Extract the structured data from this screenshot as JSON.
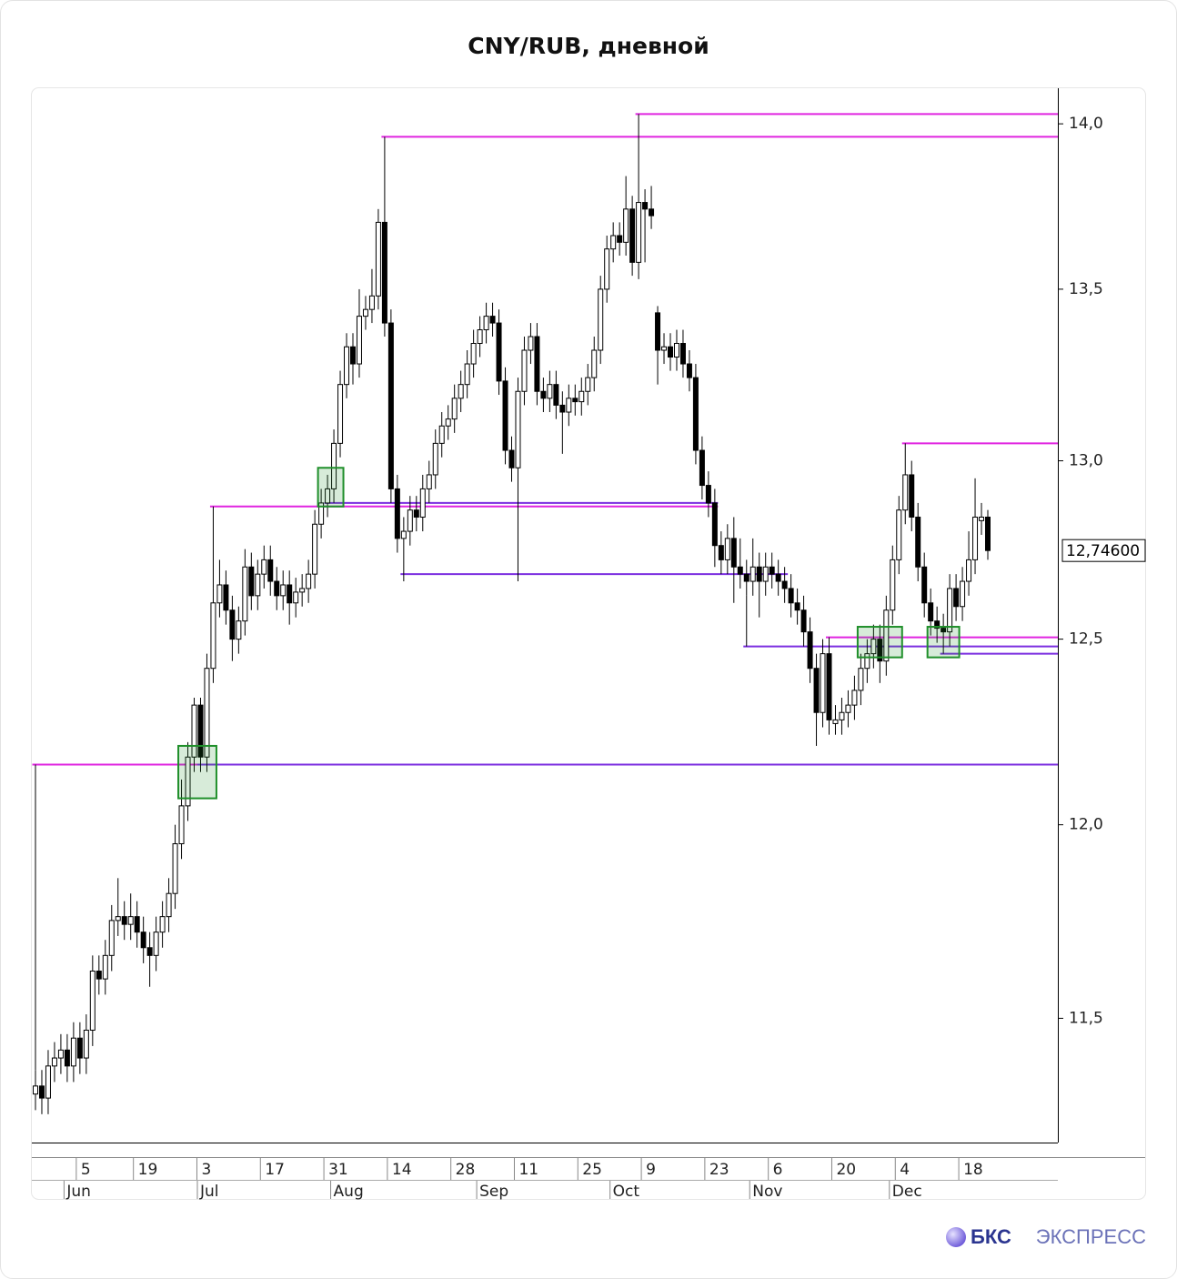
{
  "chart_data": {
    "type": "candlestick",
    "title": "CNY/RUB, дневной",
    "log_y": true,
    "ylim": [
      11.19,
      14.11
    ],
    "yticks": [
      {
        "value": 11.5,
        "label": "11,5"
      },
      {
        "value": 12,
        "label": "12,0"
      },
      {
        "value": 12.5,
        "label": "12,5"
      },
      {
        "value": 13,
        "label": "13,0"
      },
      {
        "value": 13.5,
        "label": "13,5"
      },
      {
        "value": 14,
        "label": "14,0"
      }
    ],
    "up_color": "#ffffff",
    "down_color": "#000000",
    "wick_color": "#000000",
    "last_value": {
      "value": 12.746,
      "label": "12,74600"
    },
    "categories": [
      null,
      null,
      null,
      null,
      null,
      null,
      null,
      "5",
      null,
      null,
      null,
      null,
      null,
      null,
      null,
      null,
      "19",
      null,
      null,
      null,
      null,
      null,
      null,
      null,
      null,
      null,
      "3",
      null,
      null,
      null,
      null,
      null,
      null,
      null,
      null,
      null,
      "17",
      null,
      null,
      null,
      null,
      null,
      null,
      null,
      null,
      null,
      "31",
      null,
      null,
      null,
      null,
      null,
      null,
      null,
      null,
      null,
      "14",
      null,
      null,
      null,
      null,
      null,
      null,
      null,
      null,
      null,
      "28",
      null,
      null,
      null,
      null,
      null,
      null,
      null,
      null,
      null,
      "11",
      null,
      null,
      null,
      null,
      null,
      null,
      null,
      null,
      null,
      "25",
      null,
      null,
      null,
      null,
      null,
      null,
      null,
      null,
      null,
      "9",
      null,
      null,
      null,
      null,
      null,
      null,
      null,
      null,
      null,
      "23",
      null,
      null,
      null,
      null,
      null,
      null,
      null,
      null,
      null,
      "6",
      null,
      null,
      null,
      null,
      null,
      null,
      null,
      null,
      null,
      "20",
      null,
      null,
      null,
      null,
      null,
      null,
      null,
      null,
      null,
      "4",
      null,
      null,
      null,
      null,
      null,
      null,
      null,
      null,
      null,
      "18",
      null,
      null,
      null,
      null
    ],
    "month_categories": [
      null,
      null,
      null,
      null,
      null,
      "Jun",
      null,
      null,
      null,
      null,
      null,
      null,
      null,
      null,
      null,
      null,
      null,
      null,
      null,
      null,
      null,
      null,
      null,
      null,
      null,
      null,
      "Jul",
      null,
      null,
      null,
      null,
      null,
      null,
      null,
      null,
      null,
      null,
      null,
      null,
      null,
      null,
      null,
      null,
      null,
      null,
      null,
      null,
      "Aug",
      null,
      null,
      null,
      null,
      null,
      null,
      null,
      null,
      null,
      null,
      null,
      null,
      null,
      null,
      null,
      null,
      null,
      null,
      null,
      null,
      null,
      null,
      "Sep",
      null,
      null,
      null,
      null,
      null,
      null,
      null,
      null,
      null,
      null,
      null,
      null,
      null,
      null,
      null,
      null,
      null,
      null,
      null,
      null,
      "Oct",
      null,
      null,
      null,
      null,
      null,
      null,
      null,
      null,
      null,
      null,
      null,
      null,
      null,
      null,
      null,
      null,
      null,
      null,
      null,
      null,
      null,
      "Nov",
      null,
      null,
      null,
      null,
      null,
      null,
      null,
      null,
      null,
      null,
      null,
      null,
      null,
      null,
      null,
      null,
      null,
      null,
      null,
      null,
      null,
      "Dec",
      null,
      null,
      null,
      null,
      null,
      null,
      null,
      null,
      null,
      null,
      null,
      null,
      null,
      null,
      null
    ],
    "open": [
      11.31,
      11.33,
      11.3,
      11.38,
      11.4,
      11.42,
      11.38,
      11.45,
      11.4,
      11.47,
      11.62,
      11.6,
      11.66,
      11.75,
      11.76,
      11.74,
      11.76,
      11.72,
      11.68,
      11.66,
      11.72,
      11.76,
      11.82,
      11.95,
      12.05,
      12.18,
      12.32,
      12.18,
      12.42,
      12.6,
      12.65,
      12.58,
      12.5,
      12.55,
      12.7,
      12.62,
      12.68,
      12.72,
      12.66,
      12.62,
      12.65,
      12.6,
      12.63,
      12.64,
      12.68,
      12.82,
      12.88,
      12.92,
      13.05,
      13.22,
      13.33,
      13.28,
      13.42,
      13.44,
      13.48,
      13.7,
      13.4,
      12.92,
      12.78,
      12.8,
      12.86,
      12.84,
      12.92,
      12.96,
      13.05,
      13.1,
      13.12,
      13.18,
      13.22,
      13.28,
      13.34,
      13.38,
      13.42,
      13.4,
      13.23,
      13.03,
      12.98,
      13.2,
      13.32,
      13.36,
      13.2,
      13.18,
      13.22,
      13.16,
      13.14,
      13.18,
      13.17,
      13.2,
      13.24,
      13.32,
      13.5,
      13.62,
      13.66,
      13.64,
      13.74,
      13.58,
      13.76,
      13.74,
      13.43,
      13.32,
      13.33,
      13.3,
      13.34,
      13.28,
      13.24,
      13.03,
      12.93,
      12.88,
      12.76,
      12.72,
      12.78,
      12.7,
      12.68,
      12.66,
      12.7,
      12.66,
      12.7,
      12.68,
      12.66,
      12.64,
      12.6,
      12.58,
      12.52,
      12.42,
      12.3,
      12.46,
      12.27,
      12.28,
      12.3,
      12.32,
      12.36,
      12.42,
      12.46,
      12.5,
      12.44,
      12.58,
      12.72,
      12.86,
      12.96,
      12.84,
      12.7,
      12.6,
      12.55,
      12.53,
      12.52,
      12.64,
      12.59,
      12.66,
      12.72,
      12.83,
      12.84
    ],
    "high": [
      11.37,
      11.37,
      11.42,
      11.44,
      11.46,
      11.46,
      11.49,
      11.49,
      11.51,
      11.66,
      11.66,
      11.7,
      11.79,
      11.86,
      11.8,
      11.82,
      11.8,
      11.76,
      11.72,
      11.76,
      11.8,
      11.86,
      12.0,
      12.12,
      12.22,
      12.34,
      12.34,
      12.46,
      12.64,
      12.72,
      12.69,
      12.62,
      12.59,
      12.75,
      12.74,
      12.72,
      12.76,
      12.76,
      12.7,
      12.69,
      12.69,
      12.67,
      12.68,
      12.72,
      12.86,
      12.92,
      12.96,
      13.09,
      13.26,
      13.37,
      13.37,
      13.5,
      13.48,
      13.56,
      13.74,
      13.96,
      13.44,
      12.96,
      12.84,
      12.9,
      12.9,
      12.96,
      13.0,
      13.09,
      13.14,
      13.16,
      13.22,
      13.26,
      13.32,
      13.38,
      13.42,
      13.46,
      13.46,
      13.44,
      13.27,
      13.07,
      13.24,
      13.36,
      13.4,
      13.4,
      13.24,
      13.26,
      13.26,
      13.2,
      13.22,
      13.22,
      13.24,
      13.28,
      13.36,
      13.54,
      13.66,
      13.7,
      13.7,
      13.84,
      13.78,
      14.03,
      13.8,
      13.81,
      13.45,
      13.37,
      13.37,
      13.38,
      13.38,
      13.32,
      13.28,
      13.07,
      12.97,
      12.92,
      12.8,
      12.82,
      12.84,
      12.78,
      12.72,
      12.78,
      12.74,
      12.74,
      12.74,
      12.72,
      12.7,
      12.68,
      12.64,
      12.62,
      12.56,
      12.46,
      12.5,
      12.5,
      12.32,
      12.34,
      12.36,
      12.4,
      12.46,
      12.5,
      12.54,
      12.54,
      12.62,
      12.76,
      12.9,
      13.05,
      13.0,
      12.88,
      12.74,
      12.64,
      12.59,
      12.57,
      12.68,
      12.68,
      12.7,
      12.8,
      12.95,
      12.88,
      12.86
    ],
    "low": [
      11.27,
      11.26,
      11.26,
      11.34,
      11.36,
      11.34,
      11.34,
      11.36,
      11.36,
      11.43,
      11.56,
      11.56,
      11.62,
      11.71,
      11.7,
      11.7,
      11.68,
      11.64,
      11.58,
      11.62,
      11.68,
      11.72,
      11.78,
      11.91,
      12.01,
      12.14,
      12.14,
      12.14,
      12.38,
      12.56,
      12.54,
      12.44,
      12.46,
      12.51,
      12.58,
      12.58,
      12.64,
      12.62,
      12.58,
      12.58,
      12.54,
      12.56,
      12.59,
      12.6,
      12.64,
      12.78,
      12.84,
      12.88,
      13.01,
      13.18,
      13.22,
      13.24,
      13.38,
      13.4,
      13.44,
      13.36,
      12.88,
      12.74,
      12.66,
      12.76,
      12.8,
      12.8,
      12.88,
      12.92,
      13.01,
      13.06,
      13.08,
      13.14,
      13.18,
      13.24,
      13.3,
      13.34,
      13.36,
      13.19,
      12.99,
      12.94,
      12.66,
      13.16,
      13.28,
      13.16,
      13.14,
      13.14,
      13.12,
      13.02,
      13.1,
      13.13,
      13.13,
      13.16,
      13.2,
      13.28,
      13.46,
      13.58,
      13.6,
      13.6,
      13.54,
      13.53,
      13.58,
      13.68,
      13.22,
      13.28,
      13.26,
      13.26,
      13.24,
      13.2,
      12.99,
      12.89,
      12.84,
      12.7,
      12.68,
      12.68,
      12.6,
      12.64,
      12.62,
      12.62,
      12.56,
      12.62,
      12.64,
      12.62,
      12.6,
      12.56,
      12.54,
      12.48,
      12.38,
      12.21,
      12.26,
      12.24,
      12.24,
      12.24,
      12.26,
      12.28,
      12.32,
      12.38,
      12.42,
      12.38,
      12.4,
      12.54,
      12.68,
      12.82,
      12.8,
      12.66,
      12.56,
      12.51,
      12.49,
      12.48,
      12.48,
      12.55,
      12.55,
      12.62,
      12.68,
      12.79,
      12.72
    ],
    "close": [
      11.33,
      11.3,
      11.38,
      11.4,
      11.42,
      11.38,
      11.45,
      11.4,
      11.47,
      11.62,
      11.6,
      11.66,
      11.75,
      11.76,
      11.74,
      11.76,
      11.72,
      11.68,
      11.66,
      11.72,
      11.76,
      11.82,
      11.95,
      12.05,
      12.18,
      12.32,
      12.18,
      12.42,
      12.6,
      12.65,
      12.58,
      12.5,
      12.55,
      12.7,
      12.62,
      12.68,
      12.72,
      12.66,
      12.62,
      12.65,
      12.6,
      12.63,
      12.64,
      12.68,
      12.82,
      12.88,
      12.92,
      13.05,
      13.22,
      13.33,
      13.28,
      13.42,
      13.44,
      13.48,
      13.7,
      13.4,
      12.92,
      12.78,
      12.8,
      12.86,
      12.84,
      12.92,
      12.96,
      13.05,
      13.1,
      13.12,
      13.18,
      13.22,
      13.28,
      13.34,
      13.38,
      13.42,
      13.4,
      13.23,
      13.03,
      12.98,
      13.2,
      13.32,
      13.36,
      13.2,
      13.18,
      13.22,
      13.16,
      13.14,
      13.18,
      13.17,
      13.2,
      13.24,
      13.32,
      13.5,
      13.62,
      13.66,
      13.64,
      13.74,
      13.58,
      13.76,
      13.74,
      13.72,
      13.32,
      13.33,
      13.3,
      13.34,
      13.28,
      13.24,
      13.03,
      12.93,
      12.88,
      12.76,
      12.72,
      12.78,
      12.7,
      12.68,
      12.66,
      12.7,
      12.66,
      12.7,
      12.68,
      12.66,
      12.64,
      12.6,
      12.58,
      12.52,
      12.42,
      12.3,
      12.46,
      12.28,
      12.28,
      12.3,
      12.32,
      12.36,
      12.42,
      12.46,
      12.5,
      12.44,
      12.58,
      12.72,
      12.86,
      12.96,
      12.84,
      12.7,
      12.6,
      12.55,
      12.53,
      12.52,
      12.64,
      12.59,
      12.66,
      12.72,
      12.84,
      12.84,
      12.746
    ],
    "levels": [
      {
        "value": 14.03,
        "start": 95,
        "color": "#e024e0"
      },
      {
        "value": 13.96,
        "start": 55,
        "color": "#e024e0"
      },
      {
        "value": 12.87,
        "start": 28,
        "end": 107,
        "color": "#e024e0"
      },
      {
        "value": 12.88,
        "start": 46,
        "end": 107,
        "color": "#7b2ee0"
      },
      {
        "value": 12.68,
        "start": 58,
        "end": 118,
        "color": "#7b2ee0"
      },
      {
        "value": 13.05,
        "start": 137,
        "color": "#e024e0"
      },
      {
        "value": 12.505,
        "start": 125,
        "color": "#e024e0"
      },
      {
        "value": 12.48,
        "start": 112,
        "color": "#7b2ee0"
      },
      {
        "value": 12.46,
        "start": 143,
        "color": "#7b2ee0"
      },
      {
        "value": 12.16,
        "start": 0,
        "end": 26,
        "color": "#e024e0"
      },
      {
        "value": 12.16,
        "start": 26,
        "color": "#7b2ee0"
      }
    ],
    "zones": [
      {
        "start": 23,
        "end": 28,
        "range": [
          12.07,
          12.21
        ]
      },
      {
        "start": 45,
        "end": 48,
        "range": [
          12.87,
          12.98
        ]
      },
      {
        "start": 130,
        "end": 136,
        "range": [
          12.45,
          12.534
        ]
      },
      {
        "start": 141,
        "end": 145,
        "range": [
          12.45,
          12.534
        ]
      }
    ],
    "zone_color": "#1f8f2a"
  },
  "footer": {
    "brand": "БКС",
    "product": "ЭКСПРЕСС"
  }
}
